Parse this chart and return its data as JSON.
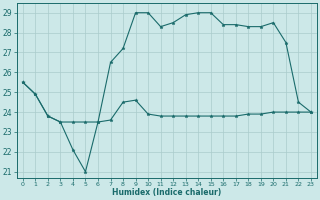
{
  "xlabel": "Humidex (Indice chaleur)",
  "background_color": "#cce8e8",
  "grid_color": "#aacccc",
  "line_color": "#1a6b6b",
  "xlim": [
    -0.5,
    23.5
  ],
  "ylim": [
    20.7,
    29.5
  ],
  "yticks": [
    21,
    22,
    23,
    24,
    25,
    26,
    27,
    28,
    29
  ],
  "xticks": [
    0,
    1,
    2,
    3,
    4,
    5,
    6,
    7,
    8,
    9,
    10,
    11,
    12,
    13,
    14,
    15,
    16,
    17,
    18,
    19,
    20,
    21,
    22,
    23
  ],
  "curve1_x": [
    0,
    1,
    2,
    3,
    4,
    5,
    6,
    7,
    8,
    9,
    10,
    11,
    12,
    13,
    14,
    15,
    16,
    17,
    18,
    19,
    20,
    21,
    22,
    23
  ],
  "curve1_y": [
    25.5,
    24.9,
    23.8,
    23.5,
    22.1,
    21.0,
    23.5,
    26.5,
    27.2,
    29.0,
    29.0,
    28.3,
    28.5,
    28.9,
    29.0,
    29.0,
    28.4,
    28.4,
    28.3,
    28.3,
    28.5,
    27.5,
    24.5,
    24.0
  ],
  "curve2_x": [
    0,
    1,
    2,
    3,
    4,
    5,
    6,
    7,
    8,
    9,
    10,
    11,
    12,
    13,
    14,
    15,
    16,
    17,
    18,
    19,
    20,
    21,
    22,
    23
  ],
  "curve2_y": [
    25.5,
    24.9,
    23.8,
    23.5,
    23.5,
    23.5,
    23.5,
    23.6,
    24.5,
    24.6,
    23.9,
    23.8,
    23.8,
    23.8,
    23.8,
    23.8,
    23.8,
    23.8,
    23.9,
    23.9,
    24.0,
    24.0,
    24.0,
    24.0
  ]
}
